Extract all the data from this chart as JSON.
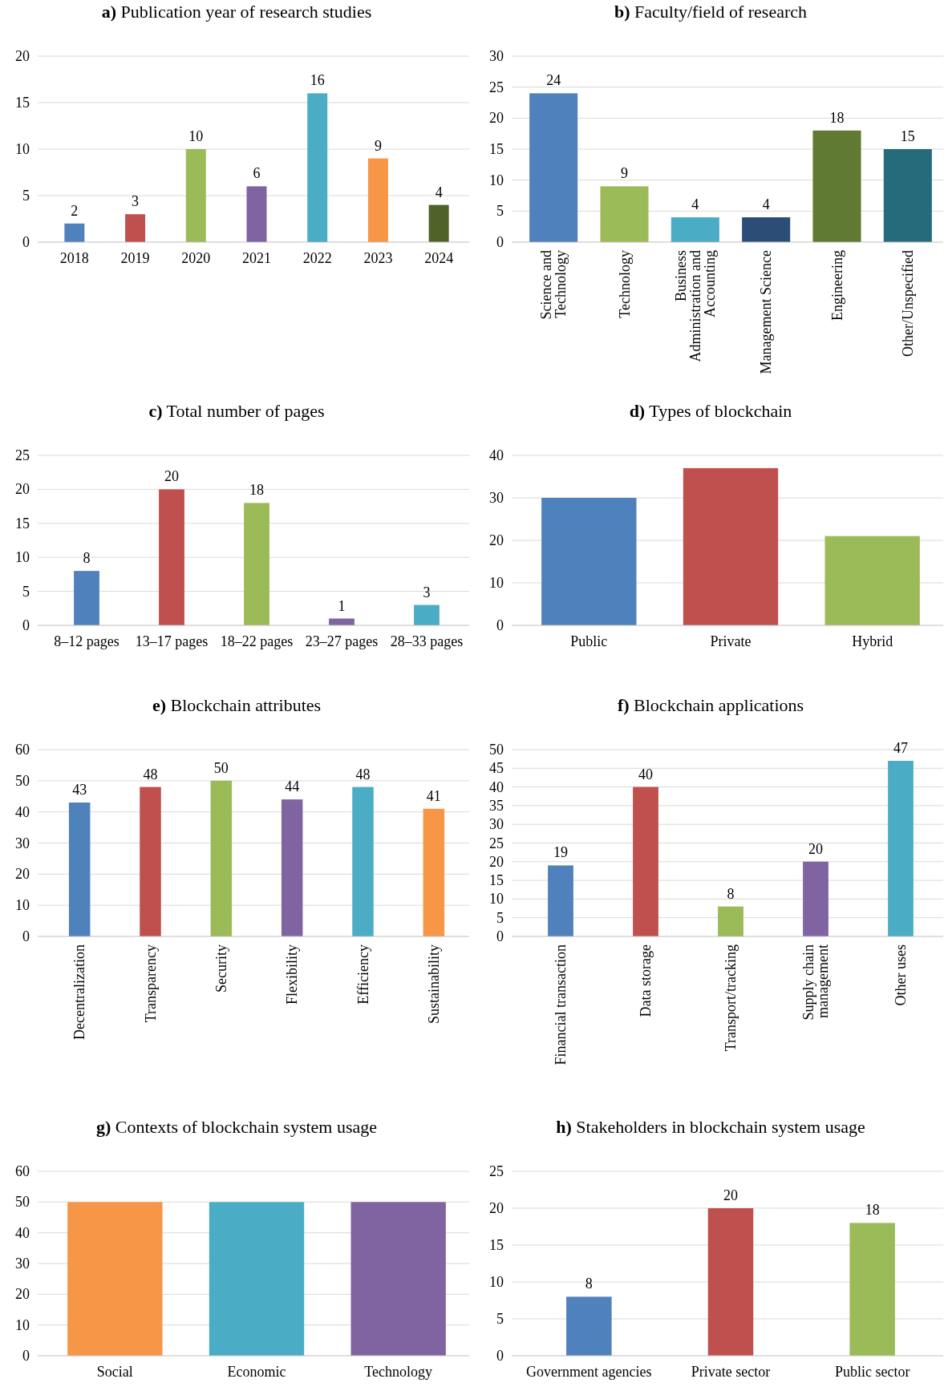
{
  "chart_data": [
    {
      "type": "bar",
      "title": "a) Publication year of research studies",
      "categories": [
        "2018",
        "2019",
        "2020",
        "2021",
        "2022",
        "2023",
        "2024"
      ],
      "values": [
        2,
        3,
        10,
        6,
        16,
        9,
        4
      ],
      "colors": [
        "#4f81bd",
        "#c0504d",
        "#9bbb59",
        "#8064a2",
        "#4bacc6",
        "#f79646",
        "#4f6228"
      ],
      "ylim": [
        0,
        20
      ],
      "yticks": [
        0,
        5,
        10,
        15,
        20
      ],
      "grid": "y",
      "data_labels": true
    },
    {
      "type": "bar",
      "title": "b) Faculty/field of research",
      "categories": [
        "Science and Technology",
        "Technology",
        "Business Administration and Accounting",
        "Management Science",
        "Engineering",
        "Other/Unspecified"
      ],
      "values": [
        24,
        9,
        4,
        4,
        18,
        15
      ],
      "colors": [
        "#4f81bd",
        "#9bbb59",
        "#4bacc6",
        "#2c4d75",
        "#607a32",
        "#256b7b"
      ],
      "ylim": [
        0,
        30
      ],
      "yticks": [
        0,
        5,
        10,
        15,
        20,
        25,
        30
      ],
      "grid": "y",
      "data_labels": true
    },
    {
      "type": "bar",
      "title": "c) Total number of pages",
      "categories": [
        "8–12 pages",
        "13–17 pages",
        "18–22 pages",
        "23–27 pages",
        "28–33 pages"
      ],
      "values": [
        8,
        20,
        18,
        1,
        3
      ],
      "colors": [
        "#4f81bd",
        "#c0504d",
        "#9bbb59",
        "#8064a2",
        "#4bacc6"
      ],
      "ylim": [
        0,
        25
      ],
      "yticks": [
        0,
        5,
        10,
        15,
        20,
        25
      ],
      "grid": "y",
      "data_labels": true
    },
    {
      "type": "bar",
      "title": "d) Types of blockchain",
      "categories": [
        "Public",
        "Private",
        "Hybrid"
      ],
      "values": [
        30,
        37,
        21
      ],
      "colors": [
        "#4f81bd",
        "#c0504d",
        "#9bbb59"
      ],
      "ylim": [
        0,
        40
      ],
      "yticks": [
        0,
        10,
        20,
        30,
        40
      ],
      "grid": "y"
    },
    {
      "type": "bar",
      "title": "e) Blockchain attributes",
      "categories": [
        "Decentralization",
        "Transparency",
        "Security",
        "Flexibility",
        "Efficiency",
        "Sustainability"
      ],
      "values": [
        43,
        48,
        50,
        44,
        48,
        41
      ],
      "colors": [
        "#4f81bd",
        "#c0504d",
        "#9bbb59",
        "#8064a2",
        "#4bacc6",
        "#f79646"
      ],
      "ylim": [
        0,
        60
      ],
      "yticks": [
        0,
        10,
        20,
        30,
        40,
        50,
        60
      ],
      "grid": "y",
      "data_labels": true
    },
    {
      "type": "bar",
      "title": "f) Blockchain applications",
      "categories": [
        "Financial transaction",
        "Data storage",
        "Transport/tracking",
        "Supply chain management",
        "Other uses"
      ],
      "values": [
        19,
        40,
        8,
        20,
        47
      ],
      "colors": [
        "#4f81bd",
        "#c0504d",
        "#9bbb59",
        "#8064a2",
        "#4bacc6"
      ],
      "ylim": [
        0,
        50
      ],
      "yticks": [
        0,
        5,
        10,
        15,
        20,
        25,
        30,
        35,
        40,
        45,
        50
      ],
      "grid": "y",
      "data_labels": true
    },
    {
      "type": "bar",
      "title": "g) Contexts of blockchain system usage",
      "categories": [
        "Social",
        "Economic",
        "Technology"
      ],
      "values": [
        50,
        50,
        50
      ],
      "colors": [
        "#f79646",
        "#4bacc6",
        "#8064a2"
      ],
      "ylim": [
        0,
        60
      ],
      "yticks": [
        0,
        10,
        20,
        30,
        40,
        50,
        60
      ],
      "grid": "y"
    },
    {
      "type": "bar",
      "title": "h) Stakeholders in blockchain system usage",
      "categories": [
        "Government agencies",
        "Private sector",
        "Public sector"
      ],
      "values": [
        8,
        20,
        18
      ],
      "colors": [
        "#4f81bd",
        "#c0504d",
        "#9bbb59"
      ],
      "ylim": [
        0,
        25
      ],
      "yticks": [
        0,
        5,
        10,
        15,
        20,
        25
      ],
      "grid": "y",
      "data_labels": true
    }
  ]
}
